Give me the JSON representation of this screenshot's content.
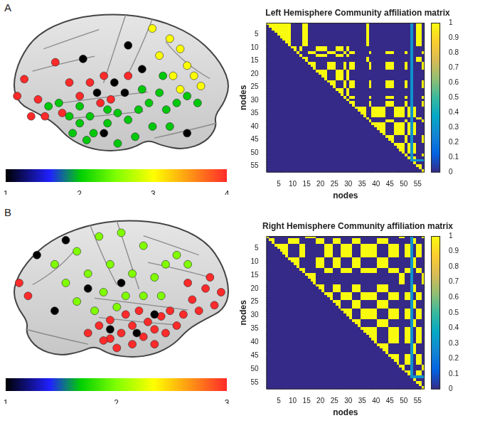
{
  "chart_data": [
    {
      "type": "scatter",
      "panel": "A",
      "tick_labels": false,
      "xlim": [
        0,
        100
      ],
      "ylim": [
        0,
        80
      ],
      "x": [
        6.3,
        3.1,
        12.5,
        20.3,
        26.6,
        35.9,
        40.6,
        45.3,
        53.1,
        15.6,
        9.4,
        31.3,
        23.4,
        42.2,
        64,
        71.9,
        76.6,
        67.2,
        79.7,
        82.8,
        73.4,
        85.9,
        76.6,
        53.1,
        59.4,
        46.9,
        39.1,
        51.6,
        42.2,
        79.7,
        32.8,
        17.2,
        21.9,
        26.6,
        31.3,
        35.9,
        37.5,
        43.8,
        48.4,
        53.1,
        57.8,
        62.5,
        67.2,
        70.3,
        75,
        79.7,
        84.4,
        64.1,
        56.3,
        48.4,
        71.9,
        31.3,
        43.8,
        59.4,
        34.4,
        28.1,
        68.8
      ],
      "y": [
        43.7,
        34.6,
        32.8,
        52.8,
        41.9,
        41.9,
        30.9,
        32.8,
        45.5,
        23.7,
        23.7,
        34.6,
        25.5,
        45.5,
        71,
        65.5,
        60,
        56.4,
        51,
        45.5,
        45.5,
        40,
        38.2,
        61.9,
        49.1,
        41.9,
        36.4,
        36.4,
        14.6,
        14.6,
        54.6,
        29.1,
        30.9,
        23.7,
        20,
        23.7,
        14.6,
        20,
        25.5,
        21.8,
        27.3,
        30.9,
        36.4,
        27.3,
        30.9,
        34.6,
        30.9,
        18.2,
        12.7,
        9.1,
        18.2,
        29.1,
        27.3,
        38.2,
        10.9,
        14.6,
        45.5
      ],
      "values": [
        4,
        4,
        4,
        4,
        4,
        4,
        4,
        4,
        4,
        4,
        4,
        4,
        4,
        4,
        3,
        3,
        3,
        3,
        3,
        3,
        3,
        3,
        3,
        1,
        1,
        1,
        1,
        1,
        1,
        1,
        1,
        2,
        2,
        2,
        2,
        2,
        2,
        2,
        2,
        2,
        2,
        2,
        2,
        2,
        2,
        2,
        2,
        2,
        2,
        2,
        2,
        2,
        2,
        2,
        2,
        2,
        2
      ],
      "colorbar": {
        "range": [
          1,
          4
        ],
        "ticks": [
          1,
          2,
          3,
          4
        ]
      }
    },
    {
      "type": "heatmap",
      "title": "Left Hemisphere Community affiliation matrix",
      "x_label": "nodes",
      "y_label": "nodes",
      "xlim": [
        0.5,
        57.5
      ],
      "ylim": [
        0.5,
        57.5
      ],
      "xticks": [
        5,
        10,
        15,
        20,
        25,
        30,
        35,
        40,
        45,
        50,
        55
      ],
      "yticks": [
        5,
        10,
        15,
        20,
        25,
        30,
        35,
        40,
        45,
        50,
        55
      ],
      "communities": [
        1,
        1,
        1,
        1,
        1,
        1,
        1,
        1,
        1,
        2,
        2,
        3,
        2,
        1,
        1,
        3,
        3,
        3,
        2,
        2,
        2,
        2,
        3,
        3,
        3,
        2,
        2,
        2,
        3,
        2,
        3,
        3,
        4,
        4,
        4,
        4,
        1,
        3,
        4,
        4,
        4,
        4,
        4,
        3,
        3,
        3,
        4,
        4,
        4,
        4,
        3,
        4,
        null,
        4,
        1,
        1,
        3
      ],
      "unassigned_value": 0.3,
      "colorbar": {
        "range": [
          0,
          1
        ],
        "ticks": [
          0,
          0.1,
          0.2,
          0.3,
          0.4,
          0.5,
          0.6,
          0.7,
          0.8,
          0.9,
          1
        ]
      }
    },
    {
      "type": "scatter",
      "panel": "B",
      "tick_labels": false,
      "xlim": [
        0,
        100
      ],
      "ylim": [
        0,
        80
      ],
      "x": [
        4,
        8,
        80,
        88,
        95,
        92,
        85,
        78,
        72,
        68,
        62,
        55,
        50,
        45,
        42,
        48,
        55,
        60,
        65,
        70,
        75,
        58,
        52,
        45,
        40,
        35,
        82,
        90,
        65,
        20,
        30,
        40,
        50,
        60,
        25,
        35,
        45,
        55,
        65,
        70,
        75,
        80,
        42,
        52,
        60,
        48,
        38,
        68,
        30,
        12,
        25,
        35,
        50,
        45,
        57,
        65,
        20
      ],
      "y": [
        45,
        38,
        45,
        42,
        40,
        33,
        30,
        28,
        30,
        27,
        24,
        22,
        18,
        15,
        14,
        10,
        12,
        16,
        20,
        18,
        22,
        30,
        28,
        25,
        22,
        18,
        36,
        48,
        12,
        55,
        62,
        70,
        72,
        65,
        45,
        50,
        55,
        50,
        48,
        55,
        60,
        55,
        40,
        38,
        38,
        32,
        30,
        38,
        35,
        60,
        68,
        42,
        45,
        20,
        18,
        28,
        30
      ],
      "values": [
        3,
        3,
        3,
        3,
        3,
        3,
        3,
        3,
        3,
        3,
        3,
        3,
        3,
        3,
        3,
        3,
        3,
        3,
        3,
        3,
        3,
        3,
        3,
        3,
        3,
        3,
        3,
        3,
        3,
        2,
        2,
        2,
        2,
        2,
        2,
        2,
        2,
        2,
        2,
        2,
        2,
        2,
        2,
        2,
        2,
        2,
        2,
        2,
        2,
        1,
        1,
        1,
        1,
        1,
        1,
        1,
        1
      ],
      "colorbar": {
        "range": [
          1,
          3
        ],
        "ticks": [
          1,
          2,
          3
        ]
      }
    },
    {
      "type": "heatmap",
      "title": "Right Hemisphere Community affiliation matrix",
      "x_label": "nodes",
      "y_label": "nodes",
      "xlim": [
        0.5,
        57.5
      ],
      "ylim": [
        0.5,
        57.5
      ],
      "xticks": [
        5,
        10,
        15,
        20,
        25,
        30,
        35,
        40,
        45,
        50,
        55
      ],
      "yticks": [
        5,
        10,
        15,
        20,
        25,
        30,
        35,
        40,
        45,
        50,
        55
      ],
      "communities": [
        1,
        2,
        2,
        3,
        3,
        3,
        3,
        3,
        2,
        2,
        2,
        2,
        3,
        3,
        1,
        1,
        1,
        1,
        2,
        2,
        2,
        3,
        3,
        3,
        2,
        2,
        2,
        3,
        3,
        3,
        3,
        2,
        2,
        2,
        3,
        3,
        3,
        3,
        3,
        3,
        2,
        2,
        2,
        2,
        3,
        3,
        3,
        3,
        1,
        1,
        3,
        3,
        null,
        2,
        3,
        3,
        1
      ],
      "unassigned_value": 0.3,
      "colorbar": {
        "range": [
          0,
          1
        ],
        "ticks": [
          0,
          0.1,
          0.2,
          0.3,
          0.4,
          0.5,
          0.6,
          0.7,
          0.8,
          0.9,
          1
        ]
      }
    }
  ]
}
